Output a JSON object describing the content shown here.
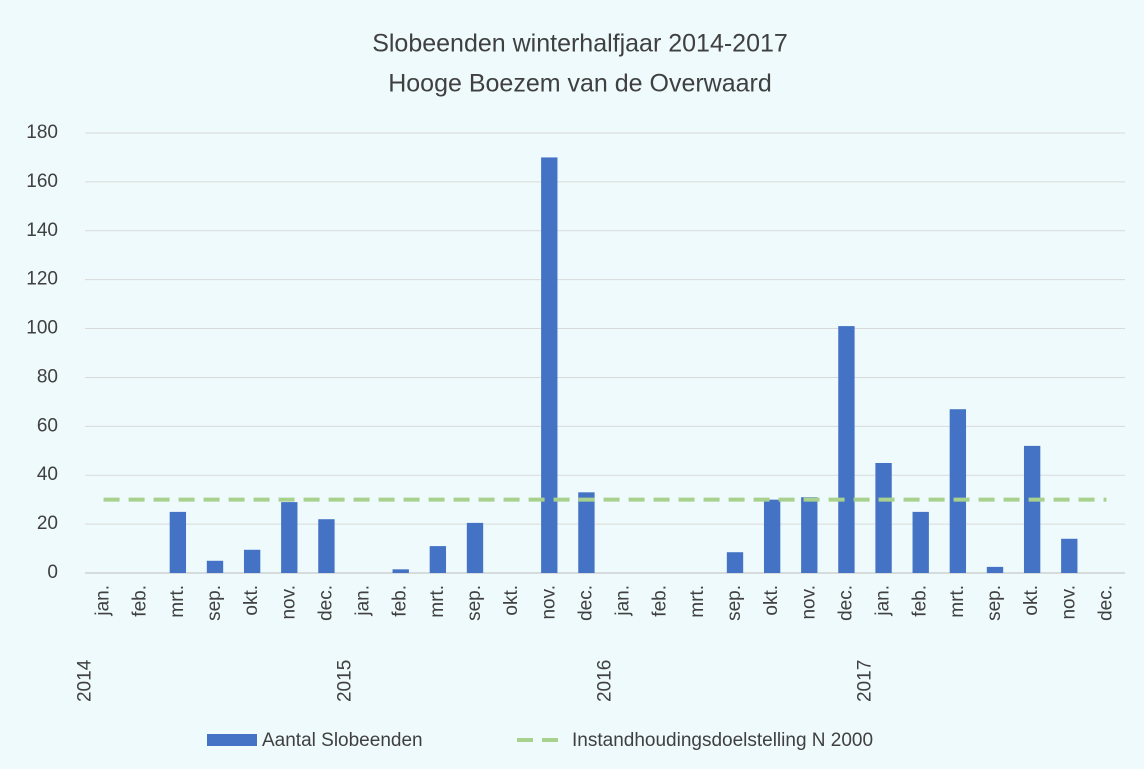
{
  "chart_data": {
    "type": "bar",
    "title": "Slobeenden winterhalfjaar 2014-2017",
    "subtitle": "Hooge Boezem van de Overwaard",
    "categories": [
      "jan.",
      "feb.",
      "mrt.",
      "sep.",
      "okt.",
      "nov.",
      "dec.",
      "jan.",
      "feb.",
      "mrt.",
      "sep.",
      "okt.",
      "nov.",
      "dec.",
      "jan.",
      "feb.",
      "mrt.",
      "sep.",
      "okt.",
      "nov.",
      "dec.",
      "jan.",
      "feb.",
      "mrt.",
      "sep.",
      "okt.",
      "nov.",
      "dec."
    ],
    "years": [
      "2014",
      null,
      null,
      null,
      null,
      null,
      null,
      "2015",
      null,
      null,
      null,
      null,
      null,
      null,
      "2016",
      null,
      null,
      null,
      null,
      null,
      null,
      "2017",
      null,
      null,
      null,
      null,
      null,
      null
    ],
    "series": [
      {
        "name": "Aantal Slobeenden",
        "type": "bar",
        "color": "#4472c4",
        "values": [
          0,
          0,
          25,
          5,
          9.5,
          29,
          22,
          0,
          1.5,
          11,
          20.5,
          0,
          170,
          33,
          0,
          0,
          0,
          8.5,
          30,
          31,
          101,
          45,
          25,
          67,
          2.5,
          52,
          14,
          0
        ]
      },
      {
        "name": "Instandhoudingsdoelstelling N 2000",
        "type": "line",
        "color": "#a9d18e",
        "dashed": true,
        "values": [
          30,
          30,
          30,
          30,
          30,
          30,
          30,
          30,
          30,
          30,
          30,
          30,
          30,
          30,
          30,
          30,
          30,
          30,
          30,
          30,
          30,
          30,
          30,
          30,
          30,
          30,
          30,
          30
        ]
      }
    ],
    "ylim": [
      0,
      180
    ],
    "yticks": [
      0,
      20,
      40,
      60,
      80,
      100,
      120,
      140,
      160,
      180
    ],
    "grid": true,
    "legend": "bottom"
  }
}
